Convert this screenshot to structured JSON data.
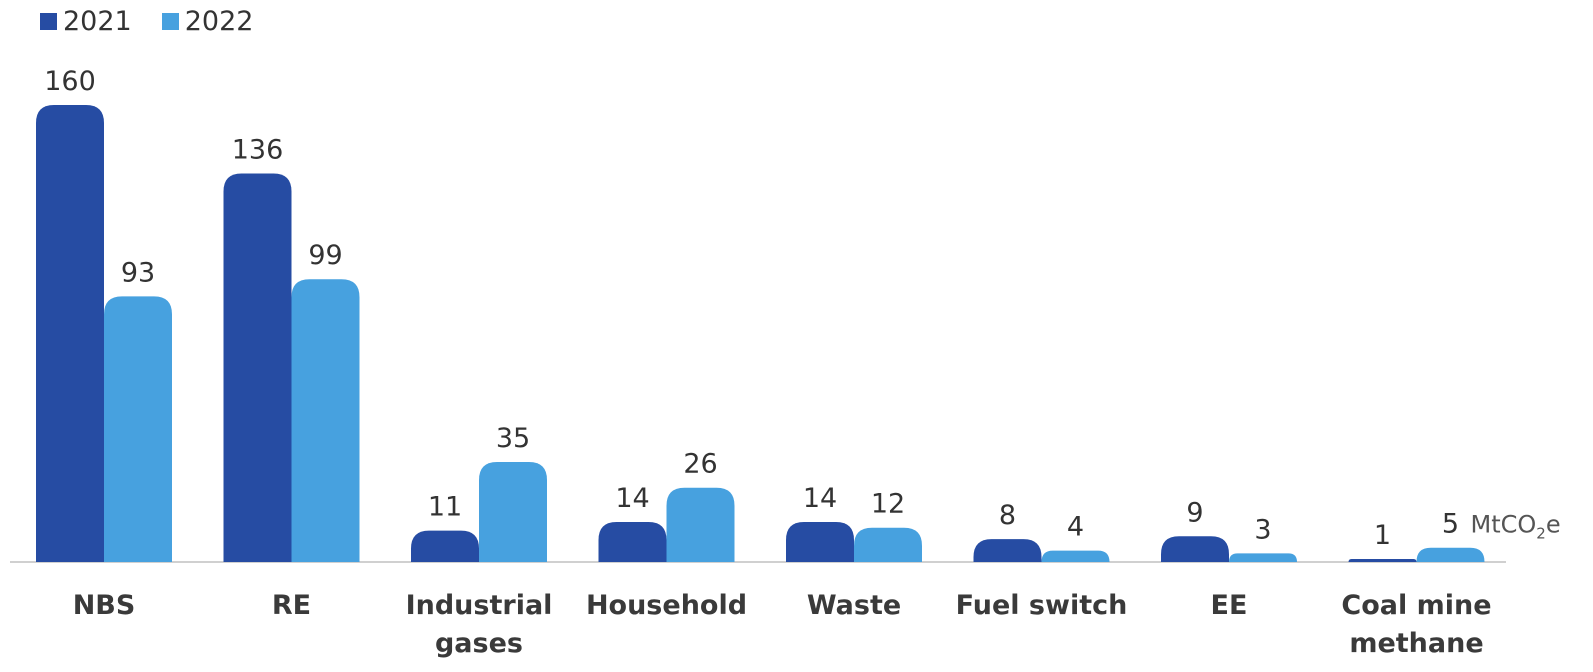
{
  "chart_data": {
    "type": "bar",
    "categories": [
      [
        "NBS"
      ],
      [
        "RE"
      ],
      [
        "Industrial",
        "gases"
      ],
      [
        "Household"
      ],
      [
        "Waste"
      ],
      [
        "Fuel switch"
      ],
      [
        "EE"
      ],
      [
        "Coal mine",
        "methane"
      ]
    ],
    "series": [
      {
        "name": "2021",
        "color": "#264ca3",
        "values": [
          160,
          136,
          11,
          14,
          14,
          8,
          9,
          1
        ]
      },
      {
        "name": "2022",
        "color": "#47a1df",
        "values": [
          93,
          99,
          35,
          26,
          12,
          4,
          3,
          5
        ]
      }
    ],
    "unit_annotation": {
      "prefix": "MtCO",
      "subscript": "2",
      "suffix": "e"
    },
    "ylim": [
      0,
      160
    ],
    "grid": false,
    "legend_position": "top-left"
  }
}
